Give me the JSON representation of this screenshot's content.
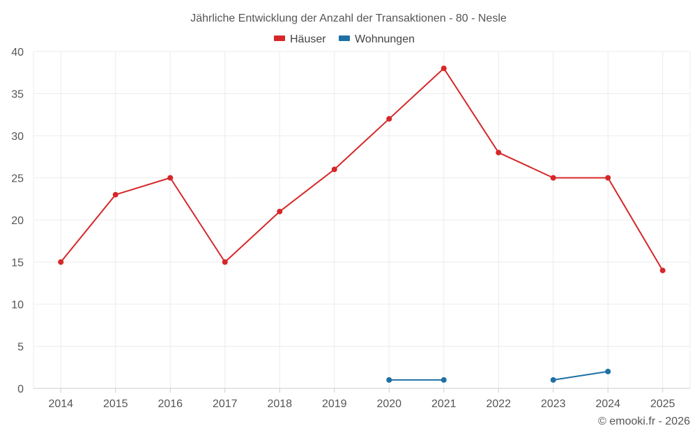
{
  "chart_data": {
    "type": "line",
    "title": "Jährliche Entwicklung der Anzahl der Transaktionen - 80 - Nesle",
    "categories": [
      "2014",
      "2015",
      "2016",
      "2017",
      "2018",
      "2019",
      "2020",
      "2021",
      "2022",
      "2023",
      "2024",
      "2025"
    ],
    "series": [
      {
        "name": "Häuser",
        "color": "#d62728",
        "values": [
          15,
          23,
          25,
          15,
          21,
          26,
          32,
          38,
          28,
          25,
          25,
          14
        ]
      },
      {
        "name": "Wohnungen",
        "color": "#1f6fa5",
        "values": [
          null,
          null,
          null,
          null,
          null,
          null,
          1,
          1,
          null,
          1,
          2,
          null
        ]
      }
    ],
    "yticks": [
      0,
      5,
      10,
      15,
      20,
      25,
      30,
      35,
      40
    ],
    "ylim": [
      0,
      40
    ],
    "xlabel": "",
    "ylabel": "",
    "legend": "top-center",
    "grid": true
  },
  "credit": "© emooki.fr - 2026"
}
